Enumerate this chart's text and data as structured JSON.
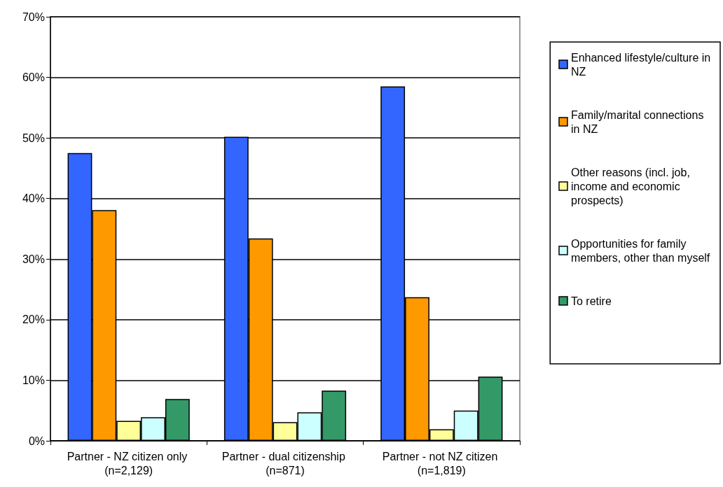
{
  "chart_data": {
    "type": "bar",
    "categories": [
      "Partner - NZ citizen only (n=2,129)",
      "Partner - dual citizenship (n=871)",
      "Partner - not NZ citizen (n=1,819)"
    ],
    "series": [
      {
        "name": "Enhanced lifestyle/culture in NZ",
        "color": "#3366ff",
        "values": [
          47.5,
          50.2,
          58.5
        ]
      },
      {
        "name": "Family/marital connections in NZ",
        "color": "#ff9900",
        "values": [
          38.1,
          33.4,
          23.7
        ]
      },
      {
        "name": "Other reasons (incl. job, income and economic prospects)",
        "color": "#ffff99",
        "values": [
          3.3,
          3.1,
          1.9
        ]
      },
      {
        "name": "Opportunities for family members, other than myself",
        "color": "#ccffff",
        "values": [
          3.9,
          4.7,
          5.0
        ]
      },
      {
        "name": "To retire",
        "color": "#339966",
        "values": [
          6.9,
          8.3,
          10.6
        ]
      }
    ],
    "ylim": [
      0,
      70
    ],
    "yticks": [
      {
        "value": 0,
        "label": "0%"
      },
      {
        "value": 10,
        "label": "10%"
      },
      {
        "value": 20,
        "label": "20%"
      },
      {
        "value": 30,
        "label": "30%"
      },
      {
        "value": 40,
        "label": "40%"
      },
      {
        "value": 50,
        "label": "50%"
      },
      {
        "value": 60,
        "label": "60%"
      },
      {
        "value": 70,
        "label": "70%"
      }
    ],
    "grid": "y",
    "legend": "right"
  }
}
